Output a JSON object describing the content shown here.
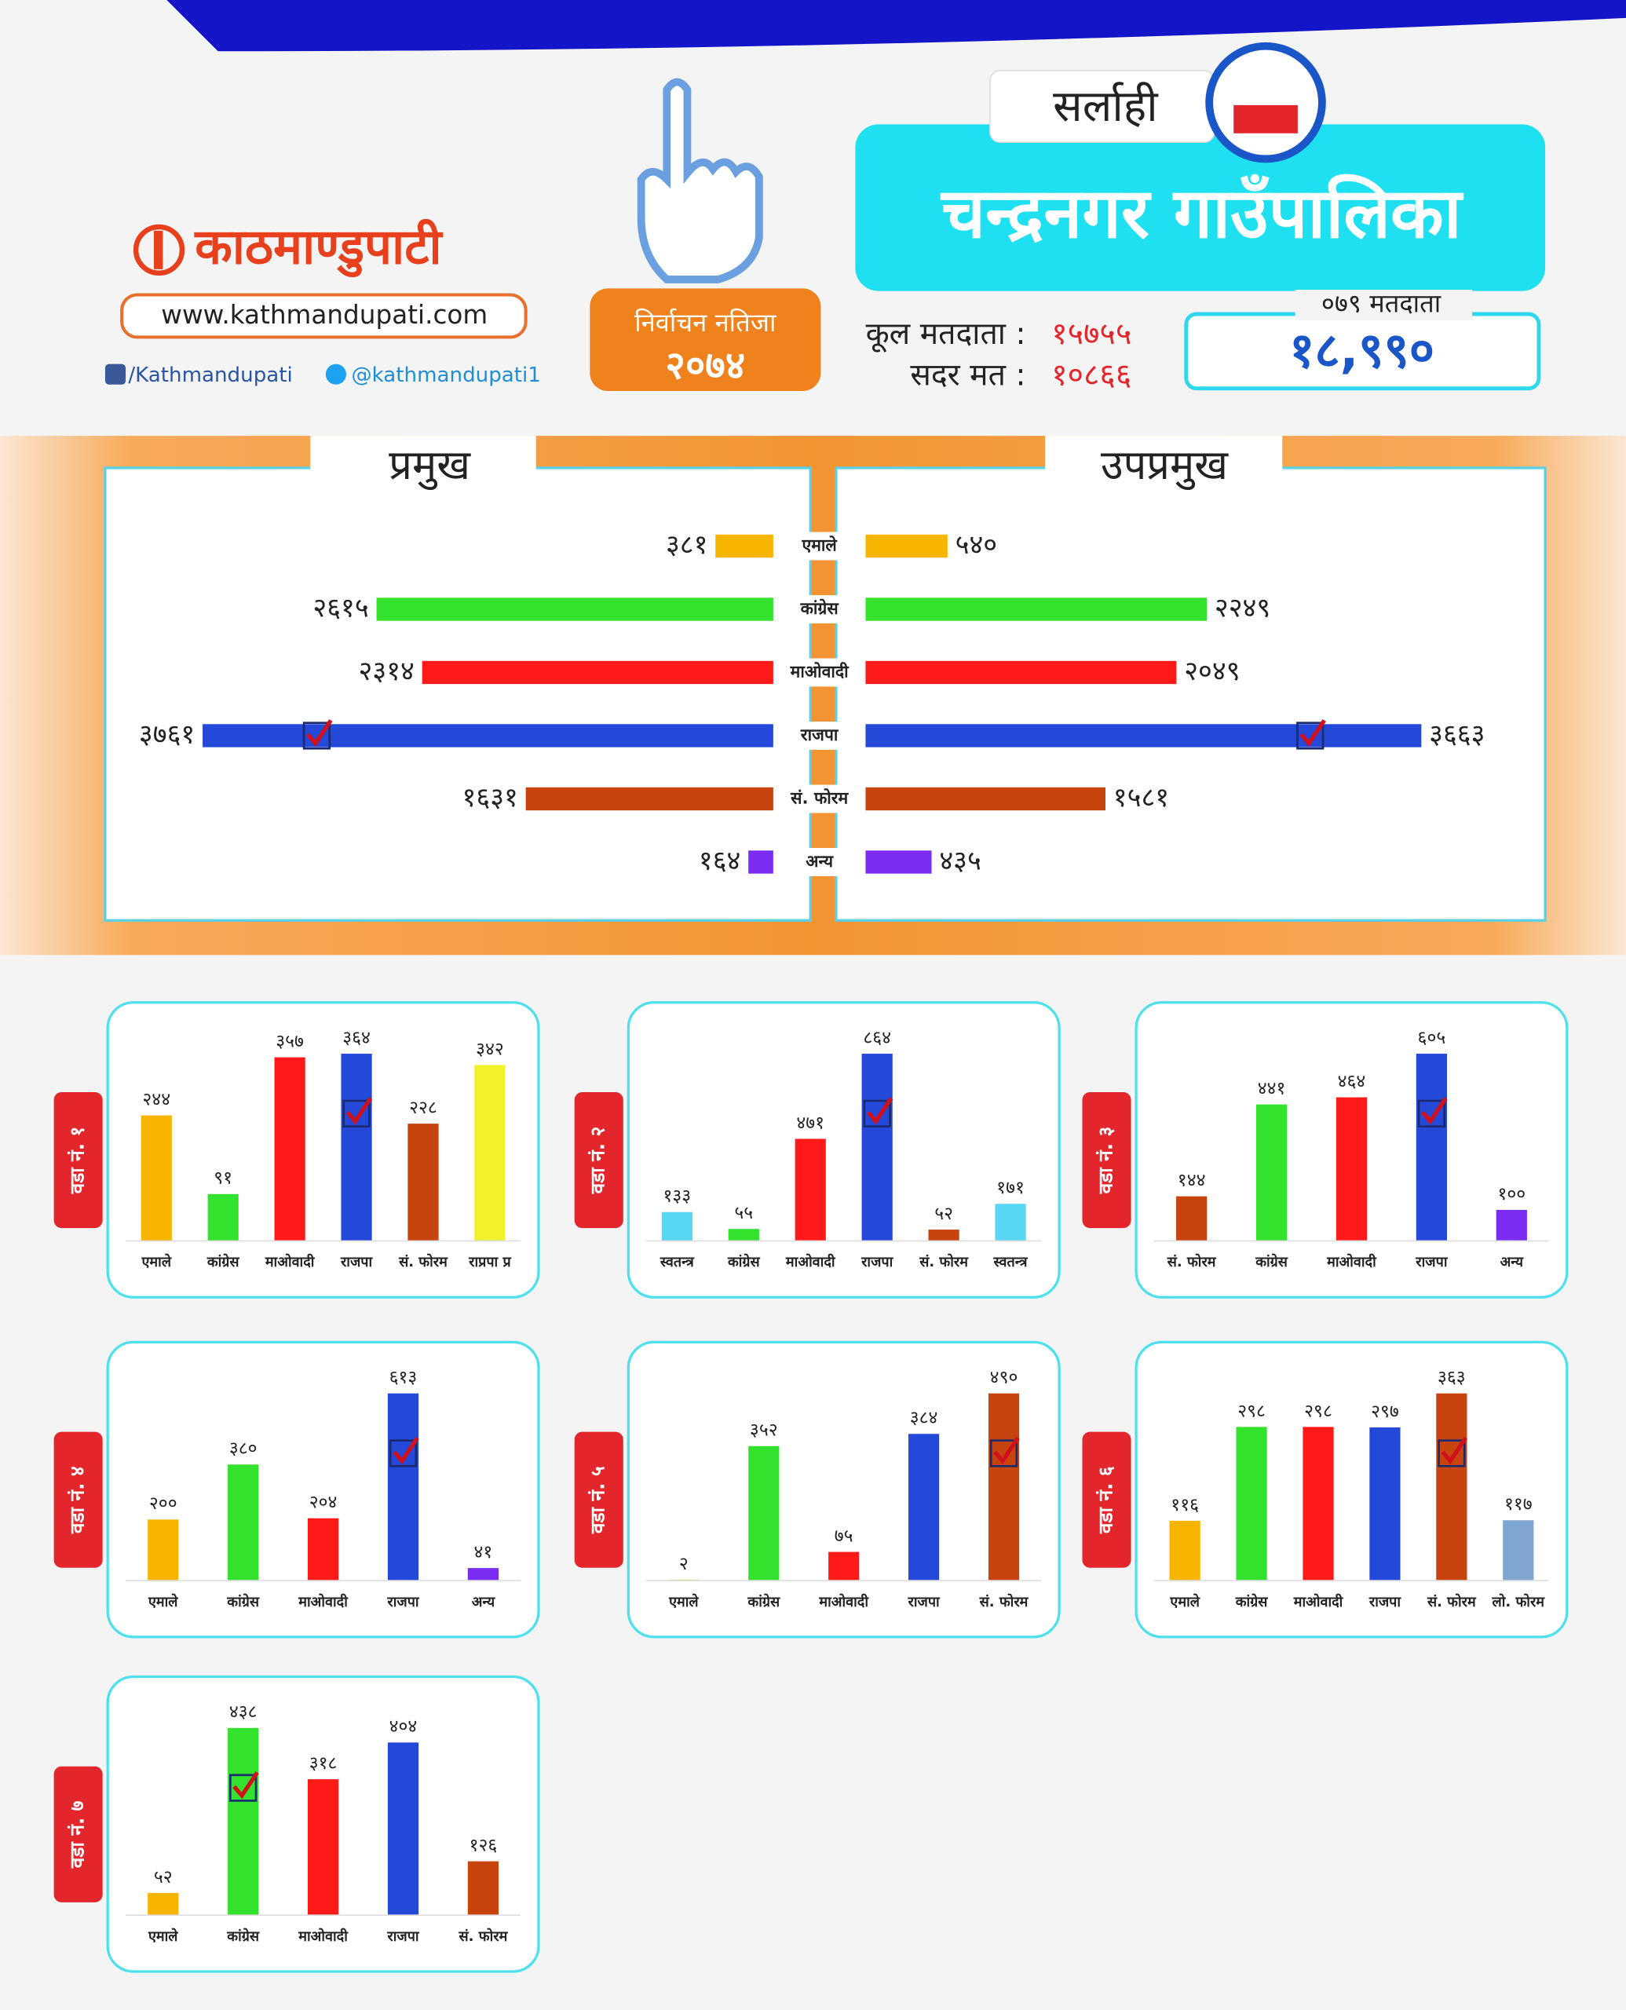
{
  "header": {
    "logo": "काठमाण्डुपाटी",
    "website": "www.kathmandupati.com",
    "facebook": "/Kathmandupati",
    "twitter": "@kathmandupati1",
    "badge_title": "निर्वाचन नतिजा",
    "badge_year": "२०७४",
    "district": "सर्लाही",
    "municipality": "चन्द्रनगर गाउँपालिका",
    "total_voters_label": "कूल मतदाता :",
    "total_voters": "१५७५५",
    "valid_votes_label": "सदर मत :",
    "valid_votes": "१०८६६",
    "voters_079_label": "०७९ मतदाता",
    "voters_079": "१८,९९०"
  },
  "chart_data": [
    {
      "type": "butterfly",
      "categories": [
        "एमाले",
        "कांग्रेस",
        "माओवादी",
        "राजपा",
        "सं. फोरम",
        "अन्य"
      ],
      "colors": [
        "#f7b500",
        "#33e22c",
        "#ff1a1a",
        "#2448d8",
        "#c8440f",
        "#7a2cf0"
      ],
      "series": [
        {
          "name": "प्रमुख",
          "values": [
            381,
            2615,
            2314,
            3761,
            1631,
            164
          ],
          "value_labels": [
            "३८१",
            "२६१५",
            "२३१४",
            "३७६१",
            "१६३१",
            "१६४"
          ],
          "marked": 3
        },
        {
          "name": "उपप्रमुख",
          "values": [
            540,
            2249,
            2049,
            3663,
            1581,
            435
          ],
          "value_labels": [
            "५४०",
            "२२४९",
            "२०४९",
            "३६६३",
            "१५८१",
            "४३५"
          ],
          "marked": 3
        }
      ]
    },
    {
      "type": "bar",
      "title": "वडा नं. १",
      "categories": [
        "एमाले",
        "कांग्रेस",
        "माओवादी",
        "राजपा",
        "सं. फोरम",
        "राप्रपा प्र"
      ],
      "colors": [
        "#f7b500",
        "#33e22c",
        "#ff1a1a",
        "#2448d8",
        "#c8440f",
        "#f2f22a"
      ],
      "values": [
        244,
        91,
        357,
        364,
        228,
        342
      ],
      "value_labels": [
        "२४४",
        "९१",
        "३५७",
        "३६४",
        "२२८",
        "३४२"
      ],
      "marked": 3
    },
    {
      "type": "bar",
      "title": "वडा नं. २",
      "categories": [
        "स्वतन्त्र",
        "कांग्रेस",
        "माओवादी",
        "राजपा",
        "सं. फोरम",
        "स्वतन्त्र"
      ],
      "colors": [
        "#5ad6f5",
        "#33e22c",
        "#ff1a1a",
        "#2448d8",
        "#c8440f",
        "#5ad6f5"
      ],
      "values": [
        133,
        55,
        471,
        864,
        52,
        171
      ],
      "value_labels": [
        "१३३",
        "५५",
        "४७१",
        "८६४",
        "५२",
        "१७१"
      ],
      "marked": 3
    },
    {
      "type": "bar",
      "title": "वडा नं. ३",
      "categories": [
        "सं. फोरम",
        "कांग्रेस",
        "माओवादी",
        "राजपा",
        "अन्य"
      ],
      "colors": [
        "#c8440f",
        "#33e22c",
        "#ff1a1a",
        "#2448d8",
        "#7a2cf0"
      ],
      "values": [
        144,
        441,
        464,
        605,
        100
      ],
      "value_labels": [
        "१४४",
        "४४१",
        "४६४",
        "६०५",
        "१००"
      ],
      "marked": 3
    },
    {
      "type": "bar",
      "title": "वडा नं. ४",
      "categories": [
        "एमाले",
        "कांग्रेस",
        "माओवादी",
        "राजपा",
        "अन्य"
      ],
      "colors": [
        "#f7b500",
        "#33e22c",
        "#ff1a1a",
        "#2448d8",
        "#7a2cf0"
      ],
      "values": [
        200,
        380,
        204,
        613,
        41
      ],
      "value_labels": [
        "२००",
        "३८०",
        "२०४",
        "६१३",
        "४१"
      ],
      "marked": 3
    },
    {
      "type": "bar",
      "title": "वडा नं. ५",
      "categories": [
        "एमाले",
        "कांग्रेस",
        "माओवादी",
        "राजपा",
        "सं. फोरम"
      ],
      "colors": [
        "#f7b500",
        "#33e22c",
        "#ff1a1a",
        "#2448d8",
        "#c8440f"
      ],
      "values": [
        2,
        352,
        75,
        384,
        490
      ],
      "value_labels": [
        "२",
        "३५२",
        "७५",
        "३८४",
        "४९०"
      ],
      "marked": 4
    },
    {
      "type": "bar",
      "title": "वडा नं. ६",
      "categories": [
        "एमाले",
        "कांग्रेस",
        "माओवादी",
        "राजपा",
        "सं. फोरम",
        "लो. फोरम"
      ],
      "colors": [
        "#f7b500",
        "#33e22c",
        "#ff1a1a",
        "#2448d8",
        "#c8440f",
        "#7fa6d0"
      ],
      "values": [
        116,
        298,
        298,
        297,
        363,
        117
      ],
      "value_labels": [
        "११६",
        "२९८",
        "२९८",
        "२९७",
        "३६३",
        "११७"
      ],
      "marked": 4
    },
    {
      "type": "bar",
      "title": "वडा नं. ७",
      "categories": [
        "एमाले",
        "कांग्रेस",
        "माओवादी",
        "राजपा",
        "सं. फोरम"
      ],
      "colors": [
        "#f7b500",
        "#33e22c",
        "#ff1a1a",
        "#2448d8",
        "#c8440f"
      ],
      "values": [
        52,
        438,
        318,
        404,
        126
      ],
      "value_labels": [
        "५२",
        "४३८",
        "३१८",
        "४०४",
        "१२६"
      ],
      "marked": 1
    }
  ]
}
